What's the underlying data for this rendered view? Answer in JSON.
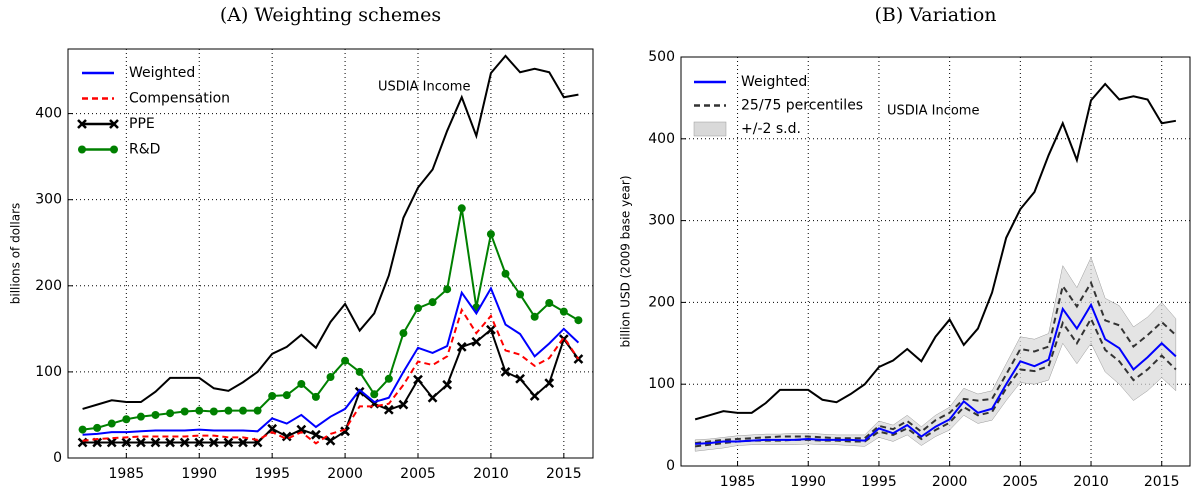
{
  "chart_data": [
    {
      "type": "line",
      "title": "(A) Weighting schemes",
      "ylabel": "billions of dollars",
      "x": [
        1982,
        1983,
        1984,
        1985,
        1986,
        1987,
        1988,
        1989,
        1990,
        1991,
        1992,
        1993,
        1994,
        1995,
        1996,
        1997,
        1998,
        1999,
        2000,
        2001,
        2002,
        2003,
        2004,
        2005,
        2006,
        2007,
        2008,
        2009,
        2010,
        2011,
        2012,
        2013,
        2014,
        2015,
        2016
      ],
      "xlim": [
        1981,
        2017
      ],
      "xticks": [
        1985,
        1990,
        1995,
        2000,
        2005,
        2010,
        2015
      ],
      "ylim": [
        0,
        475
      ],
      "yticks": [
        0,
        100,
        200,
        300,
        400
      ],
      "grid": true,
      "legend": "upper left",
      "reference": {
        "name": "USDIA Income",
        "color": "#000000",
        "values": [
          57,
          62,
          67,
          65,
          65,
          77,
          93,
          93,
          93,
          81,
          78,
          88,
          100,
          121,
          129,
          143,
          128,
          158,
          179,
          148,
          168,
          212,
          279,
          314,
          335,
          380,
          419,
          374,
          447,
          467,
          448,
          452,
          448,
          419,
          422
        ]
      },
      "series": [
        {
          "name": "Weighted",
          "color": "#0000ff",
          "values": [
            27,
            28,
            30,
            30,
            31,
            32,
            32,
            32,
            33,
            32,
            32,
            32,
            31,
            46,
            40,
            50,
            36,
            48,
            57,
            79,
            65,
            70,
            100,
            128,
            122,
            130,
            192,
            168,
            197,
            155,
            144,
            118,
            133,
            150,
            134
          ]
        },
        {
          "name": "Compensation",
          "color": "#ff0000",
          "linestyle": "dashed",
          "values": [
            20,
            22,
            23,
            24,
            25,
            25,
            25,
            25,
            26,
            26,
            24,
            24,
            21,
            30,
            22,
            30,
            17,
            28,
            33,
            60,
            60,
            63,
            85,
            112,
            108,
            118,
            172,
            145,
            165,
            125,
            120,
            107,
            116,
            140,
            115
          ]
        },
        {
          "name": "PPE",
          "color": "#000000",
          "marker": "x",
          "values": [
            18,
            18,
            18,
            18,
            18,
            18,
            18,
            18,
            18,
            18,
            18,
            18,
            18,
            34,
            25,
            33,
            27,
            20,
            31,
            77,
            63,
            56,
            62,
            91,
            70,
            85,
            129,
            135,
            149,
            100,
            92,
            72,
            87,
            138,
            115
          ]
        },
        {
          "name": "R&D",
          "color": "#008000",
          "marker": "o",
          "values": [
            33,
            35,
            40,
            45,
            48,
            50,
            52,
            54,
            55,
            54,
            55,
            55,
            55,
            72,
            73,
            86,
            71,
            94,
            113,
            100,
            74,
            92,
            145,
            174,
            181,
            196,
            290,
            175,
            260,
            214,
            190,
            164,
            180,
            170,
            160
          ]
        }
      ]
    },
    {
      "type": "line",
      "title": "(B) Variation",
      "ylabel": "billion USD (2009 base year)",
      "x": [
        1982,
        1983,
        1984,
        1985,
        1986,
        1987,
        1988,
        1989,
        1990,
        1991,
        1992,
        1993,
        1994,
        1995,
        1996,
        1997,
        1998,
        1999,
        2000,
        2001,
        2002,
        2003,
        2004,
        2005,
        2006,
        2007,
        2008,
        2009,
        2010,
        2011,
        2012,
        2013,
        2014,
        2015,
        2016
      ],
      "xlim": [
        1981,
        2017
      ],
      "xticks": [
        1985,
        1990,
        1995,
        2000,
        2005,
        2010,
        2015
      ],
      "ylim": [
        0,
        500
      ],
      "yticks": [
        0,
        100,
        200,
        300,
        400,
        500
      ],
      "grid": true,
      "legend": "upper left",
      "reference": {
        "name": "USDIA Income",
        "color": "#000000",
        "values": [
          57,
          62,
          67,
          65,
          65,
          77,
          93,
          93,
          93,
          81,
          78,
          88,
          100,
          121,
          129,
          143,
          128,
          158,
          179,
          148,
          168,
          212,
          279,
          314,
          335,
          380,
          419,
          374,
          447,
          467,
          448,
          452,
          448,
          419,
          422
        ]
      },
      "series": [
        {
          "name": "Weighted",
          "color": "#0000ff",
          "values": [
            27,
            28,
            30,
            30,
            31,
            32,
            32,
            32,
            33,
            32,
            32,
            32,
            31,
            46,
            40,
            50,
            36,
            48,
            57,
            79,
            65,
            70,
            100,
            128,
            122,
            130,
            192,
            168,
            197,
            155,
            144,
            118,
            133,
            150,
            134
          ]
        },
        {
          "name": "25/75 percentiles",
          "color": "#333333",
          "linestyle": "dashed",
          "lower": [
            24,
            26,
            28,
            30,
            31,
            31,
            31,
            32,
            32,
            31,
            31,
            30,
            30,
            42,
            38,
            46,
            33,
            44,
            53,
            72,
            62,
            66,
            95,
            118,
            116,
            122,
            175,
            150,
            180,
            142,
            128,
            105,
            118,
            135,
            118
          ],
          "upper": [
            28,
            30,
            32,
            33,
            34,
            35,
            36,
            36,
            36,
            35,
            34,
            34,
            34,
            49,
            45,
            55,
            42,
            56,
            65,
            82,
            80,
            82,
            112,
            143,
            140,
            146,
            220,
            195,
            224,
            178,
            172,
            146,
            160,
            176,
            160
          ]
        },
        {
          "name": "+/-2 s.d.",
          "color": "#d9d9d9",
          "band": true,
          "lower": [
            18,
            20,
            22,
            25,
            26,
            26,
            26,
            26,
            27,
            26,
            26,
            25,
            24,
            35,
            30,
            38,
            25,
            36,
            44,
            62,
            52,
            56,
            80,
            102,
            100,
            105,
            150,
            125,
            150,
            115,
            100,
            80,
            92,
            108,
            92
          ],
          "upper": [
            32,
            33,
            35,
            37,
            38,
            39,
            39,
            40,
            40,
            39,
            38,
            38,
            38,
            55,
            50,
            62,
            48,
            62,
            72,
            95,
            88,
            92,
            125,
            158,
            155,
            162,
            245,
            218,
            255,
            205,
            196,
            170,
            182,
            200,
            180
          ]
        }
      ]
    }
  ]
}
